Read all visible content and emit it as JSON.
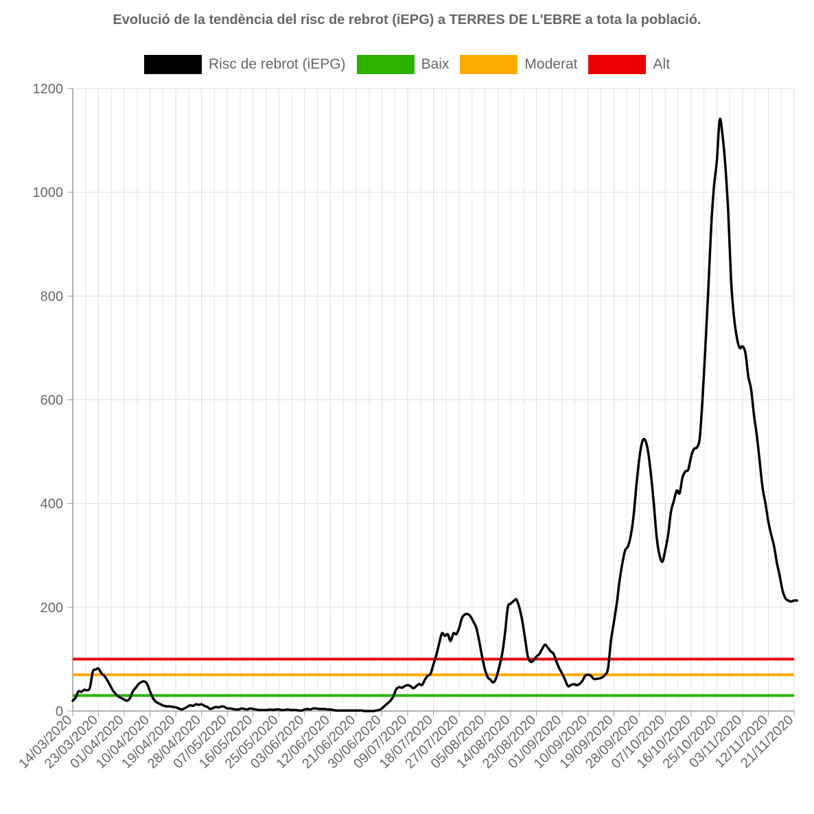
{
  "title": "Evolució de la tendència del risc de rebrot (iEPG) a TERRES DE L'EBRE a tota la població.",
  "legend": [
    {
      "label": "Risc de rebrot (iEPG)",
      "color": "#000000"
    },
    {
      "label": "Baix",
      "color": "#2db200"
    },
    {
      "label": "Moderat",
      "color": "#ffaa00"
    },
    {
      "label": "Alt",
      "color": "#ee0000"
    }
  ],
  "chart_data": {
    "type": "line",
    "title": "Evolució de la tendència del risc de rebrot (iEPG) a TERRES DE L'EBRE a tota la població.",
    "xlabel": "",
    "ylabel": "",
    "ylim": [
      0,
      1200
    ],
    "y_ticks": [
      0,
      200,
      400,
      600,
      800,
      1000,
      1200
    ],
    "x_ticks": [
      "14/03/2020",
      "23/03/2020",
      "01/04/2020",
      "10/04/2020",
      "19/04/2020",
      "28/04/2020",
      "07/05/2020",
      "16/05/2020",
      "25/05/2020",
      "03/06/2020",
      "12/06/2020",
      "21/06/2020",
      "30/06/2020",
      "09/07/2020",
      "18/07/2020",
      "27/07/2020",
      "05/08/2020",
      "14/08/2020",
      "23/08/2020",
      "01/09/2020",
      "10/09/2020",
      "19/09/2020",
      "28/09/2020",
      "07/10/2020",
      "16/10/2020",
      "25/10/2020",
      "03/11/2020",
      "12/11/2020",
      "21/11/2020"
    ],
    "grid": true,
    "legend_position": "top",
    "thresholds": [
      {
        "name": "Baix",
        "value": 30,
        "color": "#2db200"
      },
      {
        "name": "Moderat",
        "value": 70,
        "color": "#ffaa00"
      },
      {
        "name": "Alt",
        "value": 100,
        "color": "#ee0000"
      }
    ],
    "series": [
      {
        "name": "Risc de rebrot (iEPG)",
        "color": "#000000",
        "points": [
          [
            "14/03/2020",
            20
          ],
          [
            "15/03/2020",
            26
          ],
          [
            "16/03/2020",
            38
          ],
          [
            "17/03/2020",
            37
          ],
          [
            "18/03/2020",
            41
          ],
          [
            "19/03/2020",
            40
          ],
          [
            "20/03/2020",
            45
          ],
          [
            "21/03/2020",
            76
          ],
          [
            "22/03/2020",
            80
          ],
          [
            "23/03/2020",
            82
          ],
          [
            "24/03/2020",
            73
          ],
          [
            "25/03/2020",
            68
          ],
          [
            "26/03/2020",
            60
          ],
          [
            "27/03/2020",
            50
          ],
          [
            "28/03/2020",
            40
          ],
          [
            "29/03/2020",
            33
          ],
          [
            "30/03/2020",
            28
          ],
          [
            "31/03/2020",
            25
          ],
          [
            "01/04/2020",
            22
          ],
          [
            "02/04/2020",
            20
          ],
          [
            "03/04/2020",
            25
          ],
          [
            "04/04/2020",
            38
          ],
          [
            "05/04/2020",
            45
          ],
          [
            "06/04/2020",
            52
          ],
          [
            "07/04/2020",
            56
          ],
          [
            "08/04/2020",
            57
          ],
          [
            "09/04/2020",
            52
          ],
          [
            "10/04/2020",
            38
          ],
          [
            "11/04/2020",
            25
          ],
          [
            "12/04/2020",
            18
          ],
          [
            "13/04/2020",
            15
          ],
          [
            "14/04/2020",
            12
          ],
          [
            "15/04/2020",
            10
          ],
          [
            "16/04/2020",
            9
          ],
          [
            "17/04/2020",
            9
          ],
          [
            "18/04/2020",
            8
          ],
          [
            "19/04/2020",
            7
          ],
          [
            "20/04/2020",
            5
          ],
          [
            "21/04/2020",
            3
          ],
          [
            "22/04/2020",
            5
          ],
          [
            "23/04/2020",
            8
          ],
          [
            "24/04/2020",
            11
          ],
          [
            "25/04/2020",
            10
          ],
          [
            "26/04/2020",
            13
          ],
          [
            "27/04/2020",
            12
          ],
          [
            "28/04/2020",
            13
          ],
          [
            "29/04/2020",
            10
          ],
          [
            "30/04/2020",
            8
          ],
          [
            "01/05/2020",
            4
          ],
          [
            "02/05/2020",
            6
          ],
          [
            "03/05/2020",
            8
          ],
          [
            "04/05/2020",
            7
          ],
          [
            "05/05/2020",
            9
          ],
          [
            "06/05/2020",
            8
          ],
          [
            "07/05/2020",
            5
          ],
          [
            "08/05/2020",
            5
          ],
          [
            "09/05/2020",
            4
          ],
          [
            "10/05/2020",
            3
          ],
          [
            "11/05/2020",
            3
          ],
          [
            "12/05/2020",
            5
          ],
          [
            "13/05/2020",
            4
          ],
          [
            "14/05/2020",
            3
          ],
          [
            "15/05/2020",
            5
          ],
          [
            "16/05/2020",
            4
          ],
          [
            "17/05/2020",
            3
          ],
          [
            "18/05/2020",
            2
          ],
          [
            "19/05/2020",
            2
          ],
          [
            "20/05/2020",
            2
          ],
          [
            "21/05/2020",
            2
          ],
          [
            "22/05/2020",
            3
          ],
          [
            "23/05/2020",
            2
          ],
          [
            "24/05/2020",
            3
          ],
          [
            "25/05/2020",
            3
          ],
          [
            "26/05/2020",
            2
          ],
          [
            "27/05/2020",
            2
          ],
          [
            "28/05/2020",
            3
          ],
          [
            "29/05/2020",
            2
          ],
          [
            "30/05/2020",
            2
          ],
          [
            "31/05/2020",
            2
          ],
          [
            "01/06/2020",
            1
          ],
          [
            "02/06/2020",
            1
          ],
          [
            "03/06/2020",
            3
          ],
          [
            "04/06/2020",
            4
          ],
          [
            "05/06/2020",
            3
          ],
          [
            "06/06/2020",
            5
          ],
          [
            "07/06/2020",
            5
          ],
          [
            "08/06/2020",
            4
          ],
          [
            "09/06/2020",
            4
          ],
          [
            "10/06/2020",
            4
          ],
          [
            "11/06/2020",
            3
          ],
          [
            "12/06/2020",
            3
          ],
          [
            "13/06/2020",
            2
          ],
          [
            "14/06/2020",
            1
          ],
          [
            "15/06/2020",
            1
          ],
          [
            "16/06/2020",
            1
          ],
          [
            "17/06/2020",
            1
          ],
          [
            "18/06/2020",
            1
          ],
          [
            "19/06/2020",
            1
          ],
          [
            "20/06/2020",
            1
          ],
          [
            "21/06/2020",
            1
          ],
          [
            "22/06/2020",
            1
          ],
          [
            "23/06/2020",
            1
          ],
          [
            "24/06/2020",
            0
          ],
          [
            "25/06/2020",
            0
          ],
          [
            "26/06/2020",
            0
          ],
          [
            "27/06/2020",
            0
          ],
          [
            "28/06/2020",
            1
          ],
          [
            "29/06/2020",
            2
          ],
          [
            "30/06/2020",
            5
          ],
          [
            "01/07/2020",
            10
          ],
          [
            "02/07/2020",
            15
          ],
          [
            "03/07/2020",
            20
          ],
          [
            "04/07/2020",
            28
          ],
          [
            "05/07/2020",
            42
          ],
          [
            "06/07/2020",
            46
          ],
          [
            "07/07/2020",
            45
          ],
          [
            "08/07/2020",
            48
          ],
          [
            "09/07/2020",
            50
          ],
          [
            "10/07/2020",
            48
          ],
          [
            "11/07/2020",
            44
          ],
          [
            "12/07/2020",
            48
          ],
          [
            "13/07/2020",
            52
          ],
          [
            "14/07/2020",
            50
          ],
          [
            "15/07/2020",
            60
          ],
          [
            "16/07/2020",
            68
          ],
          [
            "17/07/2020",
            72
          ],
          [
            "18/07/2020",
            90
          ],
          [
            "19/07/2020",
            108
          ],
          [
            "20/07/2020",
            130
          ],
          [
            "21/07/2020",
            150
          ],
          [
            "22/07/2020",
            145
          ],
          [
            "23/07/2020",
            148
          ],
          [
            "24/07/2020",
            135
          ],
          [
            "25/07/2020",
            150
          ],
          [
            "26/07/2020",
            148
          ],
          [
            "27/07/2020",
            160
          ],
          [
            "28/07/2020",
            180
          ],
          [
            "29/07/2020",
            186
          ],
          [
            "30/07/2020",
            187
          ],
          [
            "31/07/2020",
            182
          ],
          [
            "01/08/2020",
            172
          ],
          [
            "02/08/2020",
            160
          ],
          [
            "03/08/2020",
            135
          ],
          [
            "04/08/2020",
            105
          ],
          [
            "05/08/2020",
            80
          ],
          [
            "06/08/2020",
            65
          ],
          [
            "07/08/2020",
            60
          ],
          [
            "08/08/2020",
            55
          ],
          [
            "09/08/2020",
            65
          ],
          [
            "10/08/2020",
            85
          ],
          [
            "11/08/2020",
            110
          ],
          [
            "12/08/2020",
            150
          ],
          [
            "13/08/2020",
            200
          ],
          [
            "14/08/2020",
            207
          ],
          [
            "15/08/2020",
            212
          ],
          [
            "16/08/2020",
            215
          ],
          [
            "17/08/2020",
            200
          ],
          [
            "18/08/2020",
            175
          ],
          [
            "19/08/2020",
            140
          ],
          [
            "20/08/2020",
            105
          ],
          [
            "21/08/2020",
            95
          ],
          [
            "22/08/2020",
            98
          ],
          [
            "23/08/2020",
            105
          ],
          [
            "24/08/2020",
            110
          ],
          [
            "25/08/2020",
            120
          ],
          [
            "26/08/2020",
            128
          ],
          [
            "27/08/2020",
            122
          ],
          [
            "28/08/2020",
            115
          ],
          [
            "29/08/2020",
            110
          ],
          [
            "30/08/2020",
            95
          ],
          [
            "31/08/2020",
            82
          ],
          [
            "01/09/2020",
            72
          ],
          [
            "02/09/2020",
            60
          ],
          [
            "03/09/2020",
            48
          ],
          [
            "04/09/2020",
            50
          ],
          [
            "05/09/2020",
            52
          ],
          [
            "06/09/2020",
            50
          ],
          [
            "07/09/2020",
            52
          ],
          [
            "08/09/2020",
            58
          ],
          [
            "09/09/2020",
            68
          ],
          [
            "10/09/2020",
            70
          ],
          [
            "11/09/2020",
            68
          ],
          [
            "12/09/2020",
            62
          ],
          [
            "13/09/2020",
            62
          ],
          [
            "14/09/2020",
            63
          ],
          [
            "15/09/2020",
            65
          ],
          [
            "16/09/2020",
            70
          ],
          [
            "17/09/2020",
            82
          ],
          [
            "18/09/2020",
            135
          ],
          [
            "19/09/2020",
            170
          ],
          [
            "20/09/2020",
            205
          ],
          [
            "21/09/2020",
            250
          ],
          [
            "22/09/2020",
            285
          ],
          [
            "23/09/2020",
            310
          ],
          [
            "24/09/2020",
            318
          ],
          [
            "25/09/2020",
            340
          ],
          [
            "26/09/2020",
            380
          ],
          [
            "27/09/2020",
            440
          ],
          [
            "28/09/2020",
            490
          ],
          [
            "29/09/2020",
            520
          ],
          [
            "30/09/2020",
            522
          ],
          [
            "01/10/2020",
            500
          ],
          [
            "02/10/2020",
            455
          ],
          [
            "03/10/2020",
            400
          ],
          [
            "04/10/2020",
            335
          ],
          [
            "05/10/2020",
            300
          ],
          [
            "06/10/2020",
            288
          ],
          [
            "07/10/2020",
            310
          ],
          [
            "08/10/2020",
            340
          ],
          [
            "09/10/2020",
            385
          ],
          [
            "10/10/2020",
            405
          ],
          [
            "11/10/2020",
            425
          ],
          [
            "12/10/2020",
            420
          ],
          [
            "13/10/2020",
            450
          ],
          [
            "14/10/2020",
            462
          ],
          [
            "15/10/2020",
            465
          ],
          [
            "16/10/2020",
            490
          ],
          [
            "17/10/2020",
            505
          ],
          [
            "18/10/2020",
            508
          ],
          [
            "19/10/2020",
            525
          ],
          [
            "20/10/2020",
            600
          ],
          [
            "21/10/2020",
            700
          ],
          [
            "22/10/2020",
            810
          ],
          [
            "23/10/2020",
            930
          ],
          [
            "24/10/2020",
            1010
          ],
          [
            "25/10/2020",
            1060
          ],
          [
            "26/10/2020",
            1140
          ],
          [
            "27/10/2020",
            1110
          ],
          [
            "28/10/2020",
            1050
          ],
          [
            "29/10/2020",
            960
          ],
          [
            "30/10/2020",
            830
          ],
          [
            "31/10/2020",
            760
          ],
          [
            "01/11/2020",
            720
          ],
          [
            "02/11/2020",
            700
          ],
          [
            "03/11/2020",
            703
          ],
          [
            "04/11/2020",
            690
          ],
          [
            "05/11/2020",
            645
          ],
          [
            "06/11/2020",
            620
          ],
          [
            "07/11/2020",
            570
          ],
          [
            "08/11/2020",
            530
          ],
          [
            "09/11/2020",
            480
          ],
          [
            "10/11/2020",
            430
          ],
          [
            "11/11/2020",
            400
          ],
          [
            "12/11/2020",
            365
          ],
          [
            "13/11/2020",
            340
          ],
          [
            "14/11/2020",
            318
          ],
          [
            "15/11/2020",
            285
          ],
          [
            "16/11/2020",
            260
          ],
          [
            "17/11/2020",
            232
          ],
          [
            "18/11/2020",
            217
          ],
          [
            "19/11/2020",
            213
          ],
          [
            "20/11/2020",
            211
          ],
          [
            "21/11/2020",
            213
          ],
          [
            "22/11/2020",
            213
          ]
        ]
      }
    ]
  }
}
